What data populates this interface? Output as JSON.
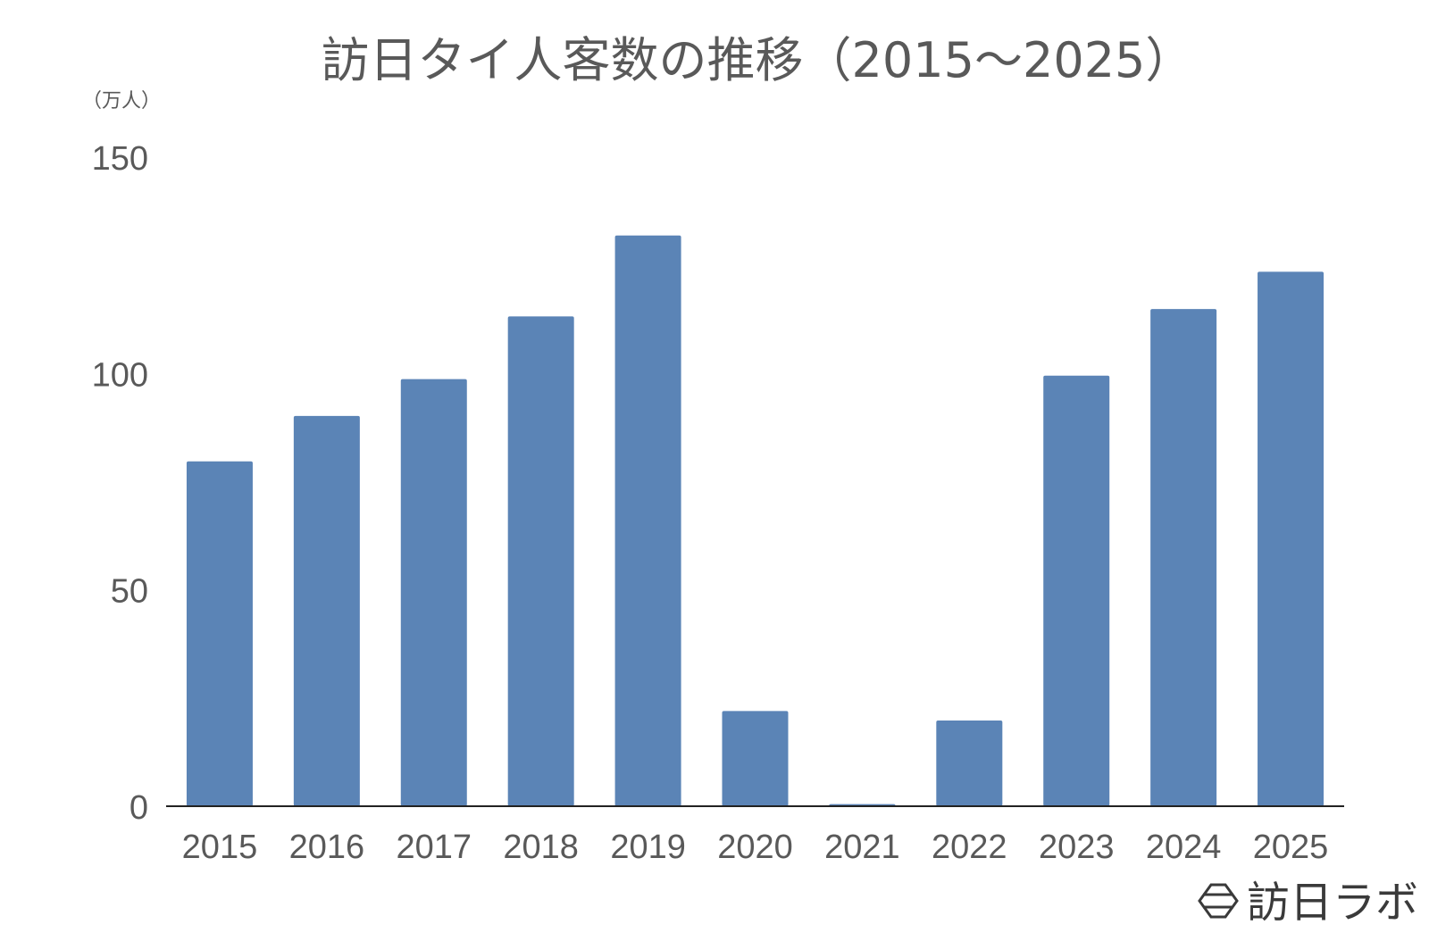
{
  "chart_data": {
    "type": "bar",
    "title": "訪日タイ人客数の推移（2015〜2025）",
    "unit_label": "（万人）",
    "xlabel": "",
    "ylabel": "",
    "categories": [
      "2015",
      "2016",
      "2017",
      "2018",
      "2019",
      "2020",
      "2021",
      "2022",
      "2023",
      "2024",
      "2025"
    ],
    "values": [
      79.7,
      90.2,
      98.7,
      113.2,
      131.9,
      22.0,
      0.5,
      19.8,
      99.5,
      114.9,
      123.5
    ],
    "ylim": [
      0,
      150
    ],
    "yticks": [
      0,
      50,
      100,
      150
    ],
    "bar_color": "#5b84b6",
    "axis_color": "#222222",
    "grid": false,
    "legend": "none"
  },
  "brand": {
    "name": "訪日ラボ",
    "logo_icon": "hexagon-logo-icon"
  }
}
